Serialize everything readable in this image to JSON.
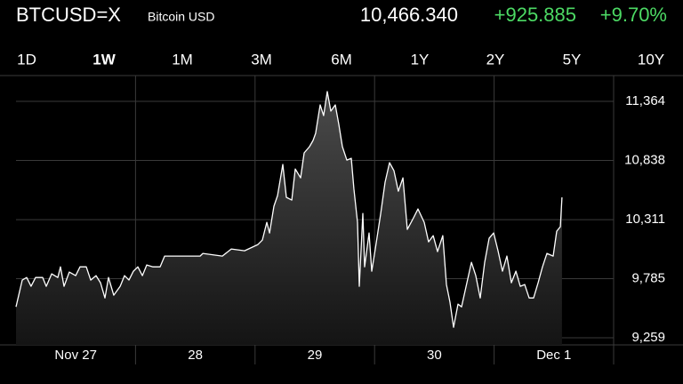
{
  "header": {
    "symbol": "BTCUSD=X",
    "name": "Bitcoin USD",
    "price": "10,466.340",
    "change": "+925.885",
    "change_percent": "+9.70%"
  },
  "tabs": [
    "1D",
    "1W",
    "1M",
    "3M",
    "6M",
    "1Y",
    "2Y",
    "5Y",
    "10Y"
  ],
  "selected_tab": 1,
  "chart_data": {
    "type": "line",
    "color": "#ffffff",
    "grid": true,
    "xlim": [
      0,
      5
    ],
    "xticks": [
      {
        "value": 0.5,
        "label": "Nov 27"
      },
      {
        "value": 1.5,
        "label": "28"
      },
      {
        "value": 2.5,
        "label": "29"
      },
      {
        "value": 3.5,
        "label": "30"
      },
      {
        "value": 4.5,
        "label": "Dec 1"
      }
    ],
    "ylim": [
      9196,
      11617
    ],
    "yticks": [
      {
        "value": 11364,
        "label": "11,364"
      },
      {
        "value": 10838,
        "label": "10,838"
      },
      {
        "value": 10311,
        "label": "10,311"
      },
      {
        "value": 9785,
        "label": "9,785"
      },
      {
        "value": 9259,
        "label": "9,259"
      }
    ],
    "x": [
      0,
      0.052,
      0.089,
      0.126,
      0.164,
      0.223,
      0.253,
      0.298,
      0.35,
      0.372,
      0.402,
      0.446,
      0.499,
      0.536,
      0.588,
      0.625,
      0.67,
      0.707,
      0.744,
      0.774,
      0.818,
      0.871,
      0.908,
      0.945,
      0.982,
      1.019,
      1.057,
      1.094,
      1.146,
      1.205,
      1.243,
      1.354,
      1.54,
      1.563,
      1.726,
      1.801,
      1.912,
      2.024,
      2.061,
      2.098,
      2.121,
      2.158,
      2.188,
      2.232,
      2.262,
      2.307,
      2.336,
      2.381,
      2.411,
      2.455,
      2.485,
      2.507,
      2.545,
      2.574,
      2.604,
      2.634,
      2.671,
      2.701,
      2.731,
      2.768,
      2.805,
      2.827,
      2.857,
      2.872,
      2.902,
      2.917,
      2.954,
      2.976,
      3.006,
      3.051,
      3.088,
      3.125,
      3.162,
      3.199,
      3.237,
      3.274,
      3.326,
      3.363,
      3.415,
      3.452,
      3.49,
      3.527,
      3.571,
      3.601,
      3.631,
      3.661,
      3.698,
      3.728,
      3.772,
      3.81,
      3.847,
      3.884,
      3.921,
      3.958,
      3.996,
      4.033,
      4.07,
      4.107,
      4.144,
      4.182,
      4.219,
      4.256,
      4.293,
      4.33,
      4.368,
      4.405,
      4.442,
      4.494,
      4.524,
      4.554,
      4.568
    ],
    "values": [
      9535,
      9773,
      9796,
      9717,
      9796,
      9796,
      9717,
      9828,
      9796,
      9891,
      9717,
      9844,
      9812,
      9891,
      9891,
      9773,
      9812,
      9749,
      9614,
      9796,
      9638,
      9717,
      9812,
      9773,
      9852,
      9891,
      9812,
      9907,
      9891,
      9891,
      9986,
      9986,
      9986,
      10010,
      9986,
      10050,
      10034,
      10089,
      10129,
      10287,
      10192,
      10430,
      10525,
      10802,
      10509,
      10485,
      10762,
      10683,
      10905,
      10960,
      11016,
      11079,
      11332,
      11237,
      11451,
      11277,
      11332,
      11158,
      10960,
      10841,
      10857,
      10588,
      10287,
      9717,
      10366,
      9891,
      10192,
      9852,
      10050,
      10366,
      10644,
      10818,
      10746,
      10564,
      10683,
      10224,
      10327,
      10406,
      10287,
      10113,
      10168,
      10026,
      10168,
      9733,
      9575,
      9353,
      9559,
      9535,
      9749,
      9931,
      9812,
      9614,
      9931,
      10145,
      10192,
      10034,
      9852,
      9986,
      9749,
      9852,
      9717,
      9733,
      9614,
      9614,
      9749,
      9891,
      10010,
      9986,
      10208,
      10248,
      10509
    ]
  }
}
